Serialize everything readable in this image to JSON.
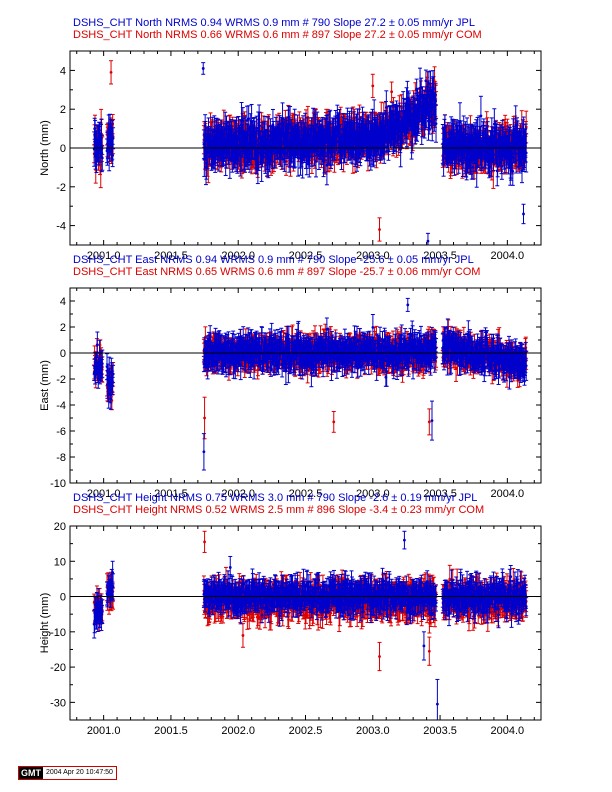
{
  "chart_data": [
    {
      "type": "scatter",
      "ylabel": "North (mm)",
      "xlim": [
        2000.75,
        2004.25
      ],
      "ylim": [
        -5,
        5
      ],
      "yticks_major": [
        -4,
        -2,
        0,
        2,
        4
      ],
      "xticks": [
        2001.0,
        2001.5,
        2002.0,
        2002.5,
        2003.0,
        2003.5,
        2004.0
      ],
      "xtick_labels": [
        "2001.0",
        "2001.5",
        "2002.0",
        "2002.5",
        "2003.0",
        "2003.5",
        "2004.0"
      ],
      "header_lines": [
        {
          "text": "DSHS_CHT North NRMS 0.94 WRMS  0.9 mm # 790 Slope   27.2 ±  0.05 mm/yr JPL",
          "color": "#0000cc"
        },
        {
          "text": "DSHS_CHT North NRMS 0.66 WRMS  0.6 mm # 897 Slope   27.2 ±  0.05 mm/yr COM",
          "color": "#dd0000"
        }
      ],
      "series": [
        {
          "name": "JPL",
          "color": "#0000cc",
          "count": 790,
          "wrms": 0.9,
          "sigma": 0.9,
          "segments": [
            {
              "x": [
                2000.93,
                2000.99
              ],
              "mean": 0.0,
              "trend": 0.0
            },
            {
              "x": [
                2001.025,
                2001.07
              ],
              "mean": 0.5,
              "trend": 0.0
            },
            {
              "x": [
                2001.745,
                2003.06
              ],
              "mean": 0.0,
              "trend": 0.6
            },
            {
              "x": [
                2003.06,
                2003.47
              ],
              "mean": 0.6,
              "trend": 1.8
            },
            {
              "x": [
                2003.52,
                2004.14
              ],
              "mean": 0.0,
              "trend": 0.0
            }
          ],
          "outliers": [
            {
              "x": 2001.74,
              "y": 4.1,
              "err": 0.3
            },
            {
              "x": 2003.41,
              "y": -4.8,
              "err": 0.4
            },
            {
              "x": 2004.12,
              "y": -3.4,
              "err": 0.5
            },
            {
              "x": 2003.36,
              "y": 3.1,
              "err": 0.5
            }
          ]
        },
        {
          "name": "COM",
          "color": "#dd0000",
          "count": 897,
          "wrms": 0.6,
          "sigma": 0.8,
          "segments": [
            {
              "x": [
                2000.93,
                2000.99
              ],
              "mean": 0.0,
              "trend": 0.0
            },
            {
              "x": [
                2001.025,
                2001.07
              ],
              "mean": 0.5,
              "trend": 0.0
            },
            {
              "x": [
                2001.745,
                2003.06
              ],
              "mean": 0.0,
              "trend": 0.6
            },
            {
              "x": [
                2003.06,
                2003.47
              ],
              "mean": 0.6,
              "trend": 1.8
            },
            {
              "x": [
                2003.52,
                2004.14
              ],
              "mean": 0.0,
              "trend": 0.0
            }
          ],
          "outliers": [
            {
              "x": 2001.055,
              "y": 3.9,
              "err": 0.6
            },
            {
              "x": 2003.0,
              "y": 3.2,
              "err": 0.6
            },
            {
              "x": 2003.14,
              "y": 2.9,
              "err": 0.5
            },
            {
              "x": 2003.05,
              "y": -4.2,
              "err": 0.6
            }
          ]
        }
      ]
    },
    {
      "type": "scatter",
      "ylabel": "East (mm)",
      "xlim": [
        2000.75,
        2004.25
      ],
      "ylim": [
        -10,
        5
      ],
      "yticks_major": [
        -10,
        -8,
        -6,
        -4,
        -2,
        0,
        2,
        4
      ],
      "xticks": [
        2001.0,
        2001.5,
        2002.0,
        2002.5,
        2003.0,
        2003.5,
        2004.0
      ],
      "xtick_labels": [
        "2001.0",
        "2001.5",
        "2002.0",
        "2002.5",
        "2003.0",
        "2003.5",
        "2004.0"
      ],
      "header_lines": [
        {
          "text": "DSHS_CHT East NRMS 0.94 WRMS  0.9 mm # 790 Slope  -25.6 ±  0.05 mm/yr JPL",
          "color": "#0000cc"
        },
        {
          "text": "DSHS_CHT East NRMS 0.65 WRMS  0.6 mm # 897 Slope  -25.7 ±  0.06 mm/yr COM",
          "color": "#dd0000"
        }
      ],
      "series": [
        {
          "name": "JPL",
          "color": "#0000cc",
          "count": 790,
          "wrms": 0.9,
          "sigma": 1.0,
          "segments": [
            {
              "x": [
                2000.93,
                2000.99
              ],
              "mean": -1.0,
              "trend": 0.0
            },
            {
              "x": [
                2001.025,
                2001.07
              ],
              "mean": -2.0,
              "trend": 0.0
            },
            {
              "x": [
                2001.745,
                2003.47
              ],
              "mean": 0.0,
              "trend": 0.0
            },
            {
              "x": [
                2003.52,
                2004.14
              ],
              "mean": 0.5,
              "trend": -1.3
            }
          ],
          "outliers": [
            {
              "x": 2001.745,
              "y": -7.6,
              "err": 1.4
            },
            {
              "x": 2003.26,
              "y": 3.7,
              "err": 0.5
            },
            {
              "x": 2003.44,
              "y": -5.2,
              "err": 1.5
            }
          ]
        },
        {
          "name": "COM",
          "color": "#dd0000",
          "count": 897,
          "wrms": 0.6,
          "sigma": 0.9,
          "segments": [
            {
              "x": [
                2000.93,
                2000.99
              ],
              "mean": -1.0,
              "trend": 0.0
            },
            {
              "x": [
                2001.025,
                2001.07
              ],
              "mean": -2.2,
              "trend": 0.0
            },
            {
              "x": [
                2001.745,
                2003.47
              ],
              "mean": 0.0,
              "trend": 0.0
            },
            {
              "x": [
                2003.52,
                2004.14
              ],
              "mean": 0.4,
              "trend": -1.2
            }
          ],
          "outliers": [
            {
              "x": 2001.75,
              "y": -5.0,
              "err": 1.6
            },
            {
              "x": 2003.42,
              "y": -5.3,
              "err": 1.0
            },
            {
              "x": 2002.71,
              "y": -5.3,
              "err": 0.8
            }
          ]
        }
      ]
    },
    {
      "type": "scatter",
      "ylabel": "Height (mm)",
      "xlim": [
        2000.75,
        2004.25
      ],
      "ylim": [
        -35,
        20
      ],
      "yticks_major": [
        -30,
        -20,
        -10,
        0,
        10,
        20
      ],
      "xticks": [
        2001.0,
        2001.5,
        2002.0,
        2002.5,
        2003.0,
        2003.5,
        2004.0
      ],
      "xtick_labels": [
        "2001.0",
        "2001.5",
        "2002.0",
        "2002.5",
        "2003.0",
        "2003.5",
        "2004.0"
      ],
      "header_lines": [
        {
          "text": "DSHS_CHT Height NRMS 0.75 WRMS  3.0 mm # 790 Slope   -2.6 ±  0.19 mm/yr JPL",
          "color": "#0000cc"
        },
        {
          "text": "DSHS_CHT Height NRMS 0.52 WRMS  2.5 mm # 896 Slope   -3.4 ±  0.23 mm/yr COM",
          "color": "#dd0000"
        }
      ],
      "series": [
        {
          "name": "JPL",
          "color": "#0000cc",
          "count": 790,
          "wrms": 3.0,
          "sigma": 3.5,
          "segments": [
            {
              "x": [
                2000.93,
                2000.99
              ],
              "mean": -4.0,
              "trend": 0.0
            },
            {
              "x": [
                2001.025,
                2001.07
              ],
              "mean": 2.0,
              "trend": 0.0
            },
            {
              "x": [
                2001.745,
                2003.47
              ],
              "mean": 0.0,
              "trend": 0.0
            },
            {
              "x": [
                2003.52,
                2004.14
              ],
              "mean": 0.0,
              "trend": 0.0
            }
          ],
          "outliers": [
            {
              "x": 2003.235,
              "y": 16.0,
              "err": 2.5
            },
            {
              "x": 2003.48,
              "y": -30.5,
              "err": 7.0
            },
            {
              "x": 2003.38,
              "y": -14.0,
              "err": 4.0
            }
          ]
        },
        {
          "name": "COM",
          "color": "#dd0000",
          "count": 896,
          "wrms": 2.5,
          "sigma": 3.8,
          "segments": [
            {
              "x": [
                2000.93,
                2000.99
              ],
              "mean": -4.0,
              "trend": 0.0
            },
            {
              "x": [
                2001.025,
                2001.07
              ],
              "mean": 2.0,
              "trend": 0.0
            },
            {
              "x": [
                2001.745,
                2003.47
              ],
              "mean": -1.0,
              "trend": 0.0
            },
            {
              "x": [
                2003.52,
                2004.14
              ],
              "mean": -1.0,
              "trend": 0.0
            }
          ],
          "outliers": [
            {
              "x": 2001.75,
              "y": 15.5,
              "err": 3.0
            },
            {
              "x": 2003.05,
              "y": -17.0,
              "err": 4.0
            },
            {
              "x": 2003.42,
              "y": -15.5,
              "err": 4.0
            }
          ]
        }
      ]
    }
  ],
  "footer": {
    "logo": "GMT",
    "timestamp": "2004 Apr 20 10:47:50"
  }
}
